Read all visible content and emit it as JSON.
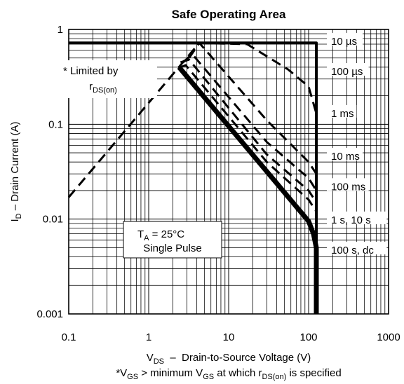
{
  "chart_data": {
    "type": "line",
    "title": "Safe Operating Area",
    "x_scale": "log",
    "y_scale": "log",
    "xlim": [
      0.1,
      1000
    ],
    "ylim": [
      0.001,
      1
    ],
    "grid": true,
    "x_ticks": [
      "0.1",
      "1",
      "10",
      "100",
      "1000"
    ],
    "y_ticks": [
      "0.001",
      "0.01",
      "0.1",
      "1"
    ],
    "xlabel": {
      "pre": "V",
      "sub": "DS",
      "post": "  –  Drain-to-Source Voltage (V)"
    },
    "ylabel": {
      "pre": "I",
      "sub": "D",
      "post": " – Drain Current (A)"
    },
    "footnote": {
      "p1": "*V",
      "s1": "GS",
      "p2": " > minimum V",
      "s2": "GS",
      "p3": " at which r",
      "s3": "DS(on)",
      "p4": " is specified"
    },
    "annotation_limited": {
      "line1": "* Limited by",
      "pre": "r",
      "sub": "DS(on)"
    },
    "conditions": {
      "pre": "T",
      "sub": "A",
      "post": " = 25°C",
      "line2": "Single Pulse"
    },
    "rds_on_limit": {
      "x": [
        0.1,
        4.3
      ],
      "y": [
        0.017,
        0.72
      ]
    },
    "series": [
      {
        "name": "10 µs",
        "label_y": 0.75,
        "style": "solid-thin",
        "x": [
          0.1,
          125,
          125
        ],
        "y": [
          0.72,
          0.72,
          0.001
        ]
      },
      {
        "name": "100 µs",
        "label_y": 0.36,
        "style": "dashed",
        "x": [
          4.3,
          17,
          55,
          100,
          125
        ],
        "y": [
          0.72,
          0.7,
          0.38,
          0.25,
          0.13
        ]
      },
      {
        "name": "1 ms",
        "label_y": 0.13,
        "style": "dashed",
        "x": [
          3.2,
          4.3,
          30,
          100,
          125
        ],
        "y": [
          0.5,
          0.72,
          0.11,
          0.04,
          0.03
        ]
      },
      {
        "name": "10 ms",
        "label_y": 0.046,
        "style": "dashed",
        "x": [
          2.7,
          3.5,
          30,
          100,
          125
        ],
        "y": [
          0.45,
          0.55,
          0.065,
          0.027,
          0.02
        ]
      },
      {
        "name": "100 ms",
        "label_y": 0.022,
        "style": "dashed",
        "x": [
          2.5,
          3.2,
          30,
          100,
          125
        ],
        "y": [
          0.45,
          0.48,
          0.048,
          0.02,
          0.015
        ]
      },
      {
        "name": "1 s, 10 s",
        "label_y": 0.0098,
        "style": "dashed",
        "x": [
          2.5,
          2.9,
          30,
          100,
          125
        ],
        "y": [
          0.4,
          0.42,
          0.04,
          0.016,
          0.012
        ]
      },
      {
        "name": "100 s, dc",
        "label_y": 0.0047,
        "style": "solid-bold",
        "x": [
          2.4,
          100,
          115,
          125,
          125
        ],
        "y": [
          0.4,
          0.0095,
          0.007,
          0.005,
          0.001
        ]
      }
    ]
  }
}
